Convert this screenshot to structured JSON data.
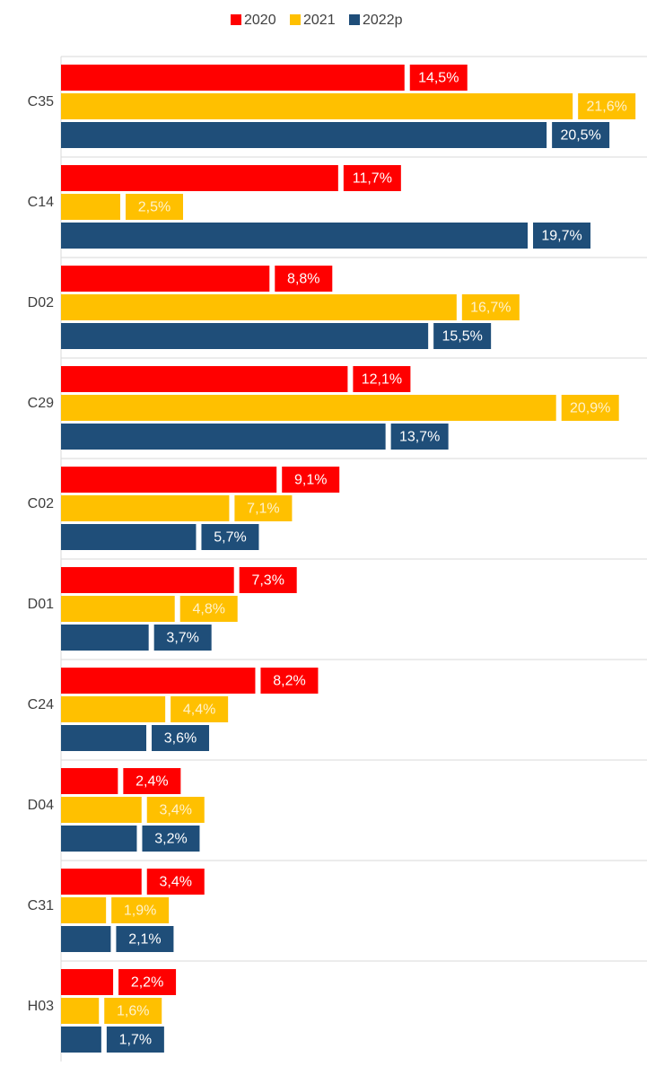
{
  "chart_data": {
    "type": "bar",
    "orientation": "horizontal",
    "categories": [
      "C35",
      "C14",
      "D02",
      "C29",
      "C02",
      "D01",
      "C24",
      "D04",
      "C31",
      "H03"
    ],
    "series": [
      {
        "name": "2020",
        "color": "#ff0000",
        "values": [
          14.5,
          11.7,
          8.8,
          12.1,
          9.1,
          7.3,
          8.2,
          2.4,
          3.4,
          2.2
        ],
        "value_labels": [
          "14,5%",
          "11,7%",
          "8,8%",
          "12,1%",
          "9,1%",
          "7,3%",
          "8,2%",
          "2,4%",
          "3,4%",
          "2,2%"
        ]
      },
      {
        "name": "2021",
        "color": "#ffc000",
        "values": [
          21.6,
          2.5,
          16.7,
          20.9,
          7.1,
          4.8,
          4.4,
          3.4,
          1.9,
          1.6
        ],
        "value_labels": [
          "21,6%",
          "2,5%",
          "16,7%",
          "20,9%",
          "7,1%",
          "4,8%",
          "4,4%",
          "3,4%",
          "1,9%",
          "1,6%"
        ]
      },
      {
        "name": "2022p",
        "color": "#1f4e79",
        "values": [
          20.5,
          19.7,
          15.5,
          13.7,
          5.7,
          3.7,
          3.6,
          3.2,
          2.1,
          1.7
        ],
        "value_labels": [
          "20,5%",
          "19,7%",
          "15,5%",
          "13,7%",
          "5,7%",
          "3,7%",
          "3,6%",
          "3,2%",
          "2,1%",
          "1,7%"
        ]
      }
    ],
    "xlim": [
      0,
      24.7
    ],
    "legend": "top"
  }
}
